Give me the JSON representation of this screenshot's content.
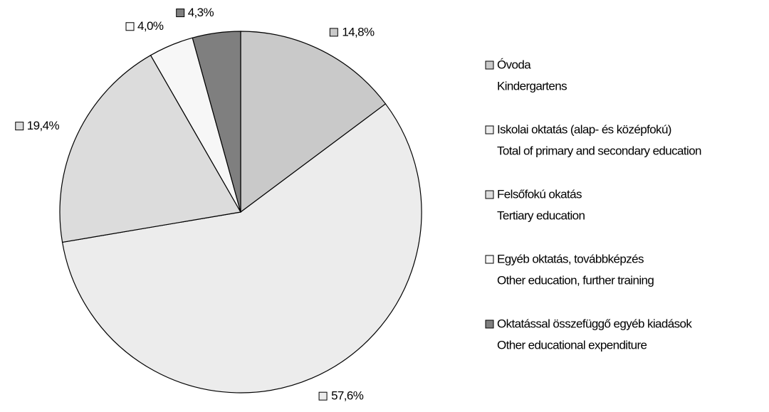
{
  "chart_data": {
    "type": "pie",
    "categories": [
      [
        "Óvoda",
        "Kindergartens"
      ],
      [
        "Iskolai oktatás (alap- és középfokú)",
        "Total of primary and secondary education"
      ],
      [
        "Felsőfokú okatás",
        "Tertiary education"
      ],
      [
        "Egyéb oktatás, továbbképzés",
        "Other education, further training"
      ],
      [
        "Oktatással összefüggő egyéb kiadások",
        "Other educational expenditure"
      ]
    ],
    "values": [
      14.8,
      57.6,
      19.4,
      4.0,
      4.3
    ],
    "value_labels": [
      "14,8%",
      "57,6%",
      "19,4%",
      "4,0%",
      "4,3%"
    ],
    "colors": [
      "#c9c9c9",
      "#ececec",
      "#dcdcdc",
      "#f7f7f7",
      "#7f7f7f"
    ],
    "legend": "right"
  }
}
